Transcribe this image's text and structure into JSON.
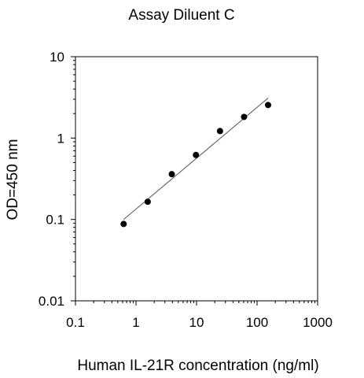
{
  "chart_data": {
    "type": "scatter",
    "title": "Assay Diluent C",
    "xlabel": "Human IL-21R concentration (ng/ml)",
    "ylabel": "OD=450 nm",
    "x_scale": "log",
    "y_scale": "log",
    "xlim": [
      0.1,
      1000
    ],
    "ylim": [
      0.01,
      10
    ],
    "x_ticks": [
      0.1,
      1,
      10,
      100,
      1000
    ],
    "x_tick_labels": [
      "0.1",
      "1",
      "10",
      "100",
      "1000"
    ],
    "y_ticks": [
      0.01,
      0.1,
      1,
      10
    ],
    "y_tick_labels": [
      "0.01",
      "0.1",
      "1",
      "10"
    ],
    "grid": false,
    "legend": "none",
    "series": [
      {
        "points": [
          {
            "x": 0.625,
            "y": 0.088
          },
          {
            "x": 1.56,
            "y": 0.165
          },
          {
            "x": 3.9,
            "y": 0.36
          },
          {
            "x": 9.77,
            "y": 0.62
          },
          {
            "x": 24.4,
            "y": 1.22
          },
          {
            "x": 61,
            "y": 1.82
          },
          {
            "x": 152,
            "y": 2.55
          }
        ],
        "color": "#000000"
      }
    ],
    "fit_line": {
      "x": [
        0.625,
        152
      ],
      "y": [
        0.1,
        3.1
      ],
      "color": "#555555"
    }
  }
}
